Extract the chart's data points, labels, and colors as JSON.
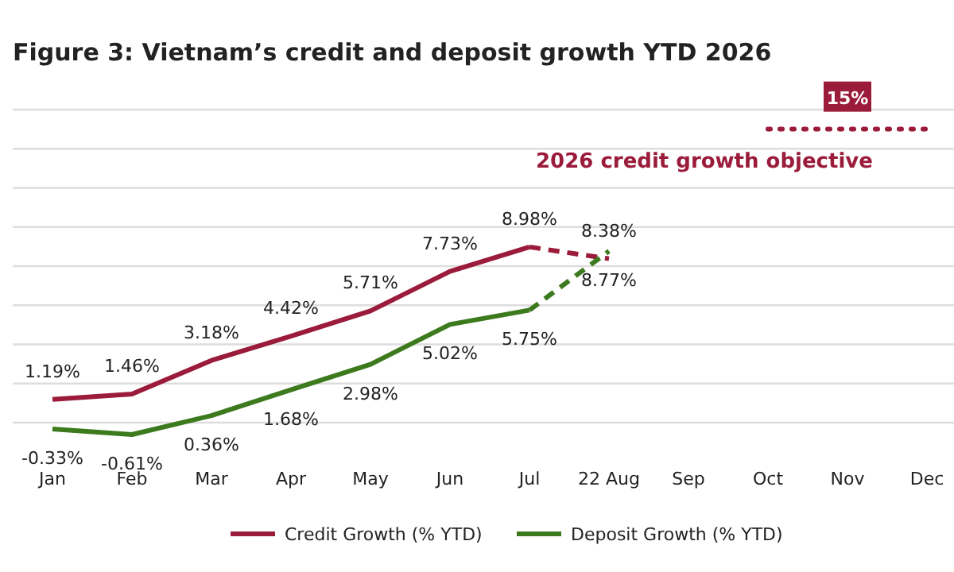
{
  "chart_data": {
    "type": "line",
    "title": "Figure 3: Vietnam’s credit and deposit growth YTD 2026",
    "categories": [
      "Jan",
      "Feb",
      "Mar",
      "Apr",
      "May",
      "Jun",
      "Jul",
      "22 Aug",
      "Sep",
      "Oct",
      "Nov",
      "Dec"
    ],
    "yticks": [
      {
        "value": 0,
        "label": null
      },
      {
        "value": 2,
        "label": null
      },
      {
        "value": 4,
        "label": null
      },
      {
        "value": 6,
        "label": null
      },
      {
        "value": 8,
        "label": null
      },
      {
        "value": 10,
        "label": null
      },
      {
        "value": 12,
        "label": null
      },
      {
        "value": 14,
        "label": null
      },
      {
        "value": 16,
        "label": null
      }
    ],
    "tick_labels": "x",
    "grid": "y",
    "legend": "bottom",
    "series": [
      {
        "name": "Credit Growth (% YTD)",
        "color": "#9b1b3a",
        "line_style": "solid",
        "values": [
          1.19,
          1.46,
          3.18,
          4.42,
          5.71,
          7.73,
          8.98,
          null,
          null,
          null,
          null,
          null
        ],
        "value_labels": [
          "1.19%",
          "1.46%",
          "3.18%",
          "4.42%",
          "5.71%",
          "7.73%",
          "8.98%",
          null,
          null,
          null,
          null,
          null
        ]
      },
      {
        "name": "Deposit Growth (% YTD)",
        "color": "#3d7a1e",
        "line_style": "solid",
        "values": [
          -0.33,
          -0.61,
          0.36,
          1.68,
          2.98,
          5.02,
          5.75,
          null,
          null,
          null,
          null,
          null
        ],
        "value_labels": [
          "-0.33%",
          "-0.61%",
          "0.36%",
          "1.68%",
          "2.98%",
          "5.02%",
          "5.75%",
          null,
          null,
          null,
          null,
          null
        ]
      },
      {
        "color": "#9b1b3a",
        "line_style": "dashed",
        "values": [
          null,
          null,
          null,
          null,
          null,
          null,
          8.98,
          8.38,
          null,
          null,
          null,
          null
        ],
        "value_labels": [
          null,
          null,
          null,
          null,
          null,
          null,
          null,
          "8.38%",
          null,
          null,
          null,
          null
        ]
      },
      {
        "color": "#3d7a1e",
        "line_style": "dashed",
        "values": [
          null,
          null,
          null,
          null,
          null,
          null,
          5.75,
          8.77,
          null,
          null,
          null,
          null
        ],
        "value_labels": [
          null,
          null,
          null,
          null,
          null,
          null,
          null,
          "8.77%",
          null,
          null,
          null,
          null
        ]
      },
      {
        "name": "2026 credit growth objective",
        "color": "#9b1b3a",
        "line_style": "dotted",
        "values": [
          null,
          null,
          null,
          null,
          null,
          null,
          null,
          null,
          null,
          15,
          15,
          15
        ],
        "value_labels": [
          null,
          null,
          null,
          null,
          null,
          null,
          null,
          null,
          null,
          null,
          "15%",
          null
        ]
      }
    ]
  }
}
